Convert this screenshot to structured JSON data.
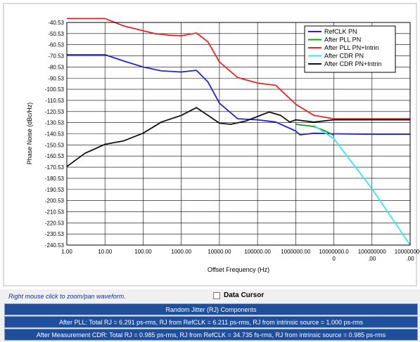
{
  "chart_data": {
    "type": "line",
    "xlabel": "Offset Frequency (Hz)",
    "ylabel": "Phase Noise (dBc/Hz)",
    "xscale": "log",
    "xlim": [
      1,
      1000000000
    ],
    "ylim": [
      -240.53,
      -40.53
    ],
    "grid": true,
    "legend_position": "top-right",
    "y_ticks": [
      "-40.53",
      "-50.53",
      "-60.53",
      "-70.53",
      "-80.53",
      "-90.53",
      "-100.53",
      "-110.53",
      "-120.53",
      "-130.53",
      "-140.53",
      "-150.53",
      "-160.53",
      "-170.53",
      "-180.53",
      "-190.53",
      "-200.53",
      "-210.53",
      "-220.53",
      "-230.53",
      "-240.53"
    ],
    "x_ticks": [
      {
        "value": 1,
        "lines": [
          "1.00"
        ]
      },
      {
        "value": 10,
        "lines": [
          "10.00"
        ]
      },
      {
        "value": 100,
        "lines": [
          "100.00"
        ]
      },
      {
        "value": 1000,
        "lines": [
          "1000.00"
        ]
      },
      {
        "value": 10000,
        "lines": [
          "10000.00"
        ]
      },
      {
        "value": 100000,
        "lines": [
          "100000.00"
        ]
      },
      {
        "value": 1000000,
        "lines": [
          "1000000.00"
        ]
      },
      {
        "value": 10000000,
        "lines": [
          "10000000.0",
          "0"
        ]
      },
      {
        "value": 100000000,
        "lines": [
          "100000000",
          ".00"
        ]
      },
      {
        "value": 1000000000,
        "lines": [
          "1000000000",
          ".00"
        ]
      }
    ],
    "series": [
      {
        "name": "RefCLK PN",
        "color": "#2222dd",
        "x": [
          1,
          10,
          30,
          100,
          300,
          1000,
          2500,
          5000,
          10000,
          30000,
          100000,
          300000,
          1000000,
          1300000,
          3000000,
          10000000,
          100000000,
          1000000000
        ],
        "y": [
          -69.5,
          -69.5,
          -75,
          -80.5,
          -84,
          -85,
          -83.5,
          -94,
          -113,
          -127,
          -128,
          -130,
          -138,
          -141.5,
          -140,
          -140.5,
          -141,
          -141
        ]
      },
      {
        "name": "After PLL PN",
        "color": "#1a9a1a",
        "x": [
          1000000,
          3000000,
          6000000,
          10000000
        ],
        "y": [
          -132,
          -134,
          -138,
          -142
        ]
      },
      {
        "name": "After PLL PN+Intrin",
        "color": "#ee2222",
        "x": [
          1,
          10,
          30,
          100,
          200,
          500,
          1000,
          2500,
          5000,
          10000,
          30000,
          100000,
          300000,
          1000000,
          3000000,
          10000000,
          100000000,
          1000000000
        ],
        "y": [
          -37,
          -37,
          -43.5,
          -48,
          -50.5,
          -52,
          -52.5,
          -50,
          -58,
          -76,
          -90,
          -95,
          -97,
          -114,
          -124,
          -127,
          -127,
          -127
        ]
      },
      {
        "name": "After CDR PN",
        "color": "#33e8f0",
        "x": [
          3000000,
          10000000,
          100000000,
          1000000000
        ],
        "y": [
          -133,
          -145,
          -190,
          -240.53
        ]
      },
      {
        "name": "After CDR PN+Intrin",
        "color": "#111111",
        "x": [
          1,
          3,
          10,
          30,
          100,
          300,
          1000,
          2500,
          5000,
          10000,
          20000,
          50000,
          100000,
          200000,
          400000,
          700000,
          1000000,
          3000000,
          10000000,
          1000000000
        ],
        "y": [
          -170,
          -158,
          -150,
          -147,
          -140,
          -130,
          -124,
          -117,
          -124,
          -131,
          -132,
          -129,
          -125,
          -121,
          -124,
          -130,
          -128,
          -130,
          -128,
          -128
        ]
      }
    ]
  },
  "ui": {
    "hint": "Right mouse click to zoom/pan waveform.",
    "data_cursor_label": "Data Cursor",
    "rj_title": "Random Jitter (RJ) Components",
    "rj_pll": "After PLL: Total RJ = 6.291 ps-rms, RJ from RefCLK = 6.211 ps-rms, RJ from intrinsic source = 1.000 ps-rms",
    "rj_cdr": "After Measurement CDR: Total RJ = 0.985 ps-rms, RJ from RefCLK = 34.735 fs-rms, RJ from intrinsic source = 0.985 ps-rms"
  }
}
